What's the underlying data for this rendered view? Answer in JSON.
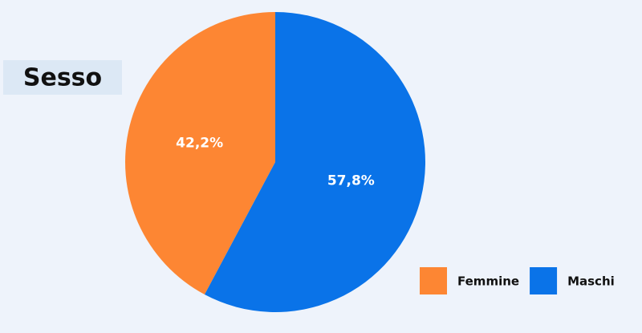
{
  "chart_data": {
    "type": "pie",
    "title": "Sesso",
    "categories": [
      "Femmine",
      "Maschi"
    ],
    "values": [
      42.2,
      57.8
    ],
    "value_labels": [
      "42,2%",
      "57,8%"
    ],
    "colors": [
      "#fd8633",
      "#0a73e8"
    ],
    "legend": "bottom-right"
  }
}
